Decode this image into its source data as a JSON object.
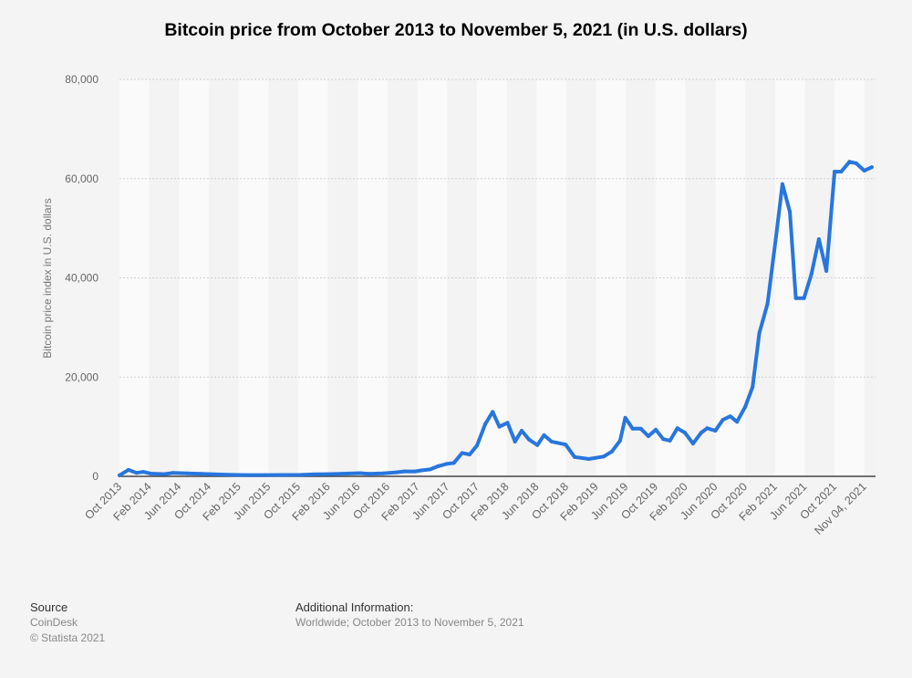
{
  "chart_data": {
    "type": "line",
    "title": "Bitcoin price from October 2013 to November 5, 2021 (in U.S. dollars)",
    "xlabel": "",
    "ylabel": "Bitcoin price index in U.S. dollars",
    "ylim": [
      0,
      80000
    ],
    "xlim_months_since_oct_2013": [
      0,
      101.5
    ],
    "grid": "horizontal dotted",
    "legend": "none",
    "color": "#2876dd",
    "y_ticks": [
      {
        "value": 0,
        "label": "0"
      },
      {
        "value": 20000,
        "label": "20,000"
      },
      {
        "value": 40000,
        "label": "40,000"
      },
      {
        "value": 60000,
        "label": "60,000"
      },
      {
        "value": 80000,
        "label": "80,000"
      }
    ],
    "x_ticks": [
      {
        "m": 0,
        "label": "Oct 2013"
      },
      {
        "m": 4,
        "label": "Feb 2014"
      },
      {
        "m": 8,
        "label": "Jun 2014"
      },
      {
        "m": 12,
        "label": "Oct 2014"
      },
      {
        "m": 16,
        "label": "Feb 2015"
      },
      {
        "m": 20,
        "label": "Jun 2015"
      },
      {
        "m": 24,
        "label": "Oct 2015"
      },
      {
        "m": 28,
        "label": "Feb 2016"
      },
      {
        "m": 32,
        "label": "Jun 2016"
      },
      {
        "m": 36,
        "label": "Oct 2016"
      },
      {
        "m": 40,
        "label": "Feb 2017"
      },
      {
        "m": 44,
        "label": "Jun 2017"
      },
      {
        "m": 48,
        "label": "Oct 2017"
      },
      {
        "m": 52,
        "label": "Feb 2018"
      },
      {
        "m": 56,
        "label": "Jun 2018"
      },
      {
        "m": 60,
        "label": "Oct 2018"
      },
      {
        "m": 64,
        "label": "Feb 2019"
      },
      {
        "m": 68,
        "label": "Jun 2019"
      },
      {
        "m": 72,
        "label": "Oct 2019"
      },
      {
        "m": 76,
        "label": "Feb 2020"
      },
      {
        "m": 80,
        "label": "Jun 2020"
      },
      {
        "m": 84,
        "label": "Oct 2020"
      },
      {
        "m": 88,
        "label": "Feb 2021"
      },
      {
        "m": 92,
        "label": "Jun 2021"
      },
      {
        "m": 96,
        "label": "Oct 2021"
      },
      {
        "m": 100,
        "label": "Nov 04, 2021"
      }
    ],
    "points": [
      [
        0,
        200
      ],
      [
        1.2,
        1300
      ],
      [
        2.3,
        700
      ],
      [
        3.2,
        900
      ],
      [
        4.2,
        550
      ],
      [
        6,
        450
      ],
      [
        7.2,
        700
      ],
      [
        9.1,
        600
      ],
      [
        10.9,
        500
      ],
      [
        12.7,
        400
      ],
      [
        15.2,
        300
      ],
      [
        17,
        250
      ],
      [
        19.5,
        250
      ],
      [
        21.9,
        280
      ],
      [
        24.4,
        300
      ],
      [
        26.2,
        400
      ],
      [
        28,
        450
      ],
      [
        30.5,
        550
      ],
      [
        32.3,
        650
      ],
      [
        33.5,
        500
      ],
      [
        35.4,
        600
      ],
      [
        37.2,
        800
      ],
      [
        38.2,
        1000
      ],
      [
        39.7,
        1000
      ],
      [
        40.5,
        1200
      ],
      [
        41.7,
        1400
      ],
      [
        42.7,
        2000
      ],
      [
        43.9,
        2500
      ],
      [
        44.9,
        2700
      ],
      [
        46,
        4700
      ],
      [
        47,
        4400
      ],
      [
        48,
        6200
      ],
      [
        49.1,
        10500
      ],
      [
        50.1,
        13000
      ],
      [
        51,
        10000
      ],
      [
        52.1,
        10800
      ],
      [
        53.1,
        7000
      ],
      [
        54,
        9200
      ],
      [
        55,
        7400
      ],
      [
        56.1,
        6300
      ],
      [
        57,
        8300
      ],
      [
        58,
        7000
      ],
      [
        59.9,
        6400
      ],
      [
        61.1,
        3900
      ],
      [
        63,
        3500
      ],
      [
        65,
        4000
      ],
      [
        66.1,
        5000
      ],
      [
        67.2,
        7200
      ],
      [
        67.9,
        11800
      ],
      [
        68.9,
        9600
      ],
      [
        70,
        9600
      ],
      [
        71,
        8100
      ],
      [
        72,
        9400
      ],
      [
        73,
        7500
      ],
      [
        73.9,
        7200
      ],
      [
        74.9,
        9700
      ],
      [
        75.9,
        8800
      ],
      [
        77,
        6600
      ],
      [
        78.1,
        8800
      ],
      [
        78.9,
        9700
      ],
      [
        80,
        9200
      ],
      [
        81,
        11400
      ],
      [
        82,
        12100
      ],
      [
        82.9,
        11000
      ],
      [
        84,
        14000
      ],
      [
        85,
        18000
      ],
      [
        85.9,
        28900
      ],
      [
        87,
        34800
      ],
      [
        88.1,
        47800
      ],
      [
        89,
        58900
      ],
      [
        90,
        53300
      ],
      [
        90.8,
        35900
      ],
      [
        91.9,
        35900
      ],
      [
        92.9,
        40800
      ],
      [
        93.9,
        47800
      ],
      [
        94.9,
        41400
      ],
      [
        96,
        61400
      ],
      [
        96.9,
        61400
      ],
      [
        98,
        63400
      ],
      [
        98.9,
        63100
      ],
      [
        100,
        61600
      ],
      [
        101,
        62300
      ]
    ]
  },
  "footer": {
    "source_heading": "Source",
    "source_name": "CoinDesk",
    "copyright": "© Statista 2021",
    "info_heading": "Additional Information:",
    "info_text": "Worldwide; October 2013 to November 5, 2021"
  }
}
